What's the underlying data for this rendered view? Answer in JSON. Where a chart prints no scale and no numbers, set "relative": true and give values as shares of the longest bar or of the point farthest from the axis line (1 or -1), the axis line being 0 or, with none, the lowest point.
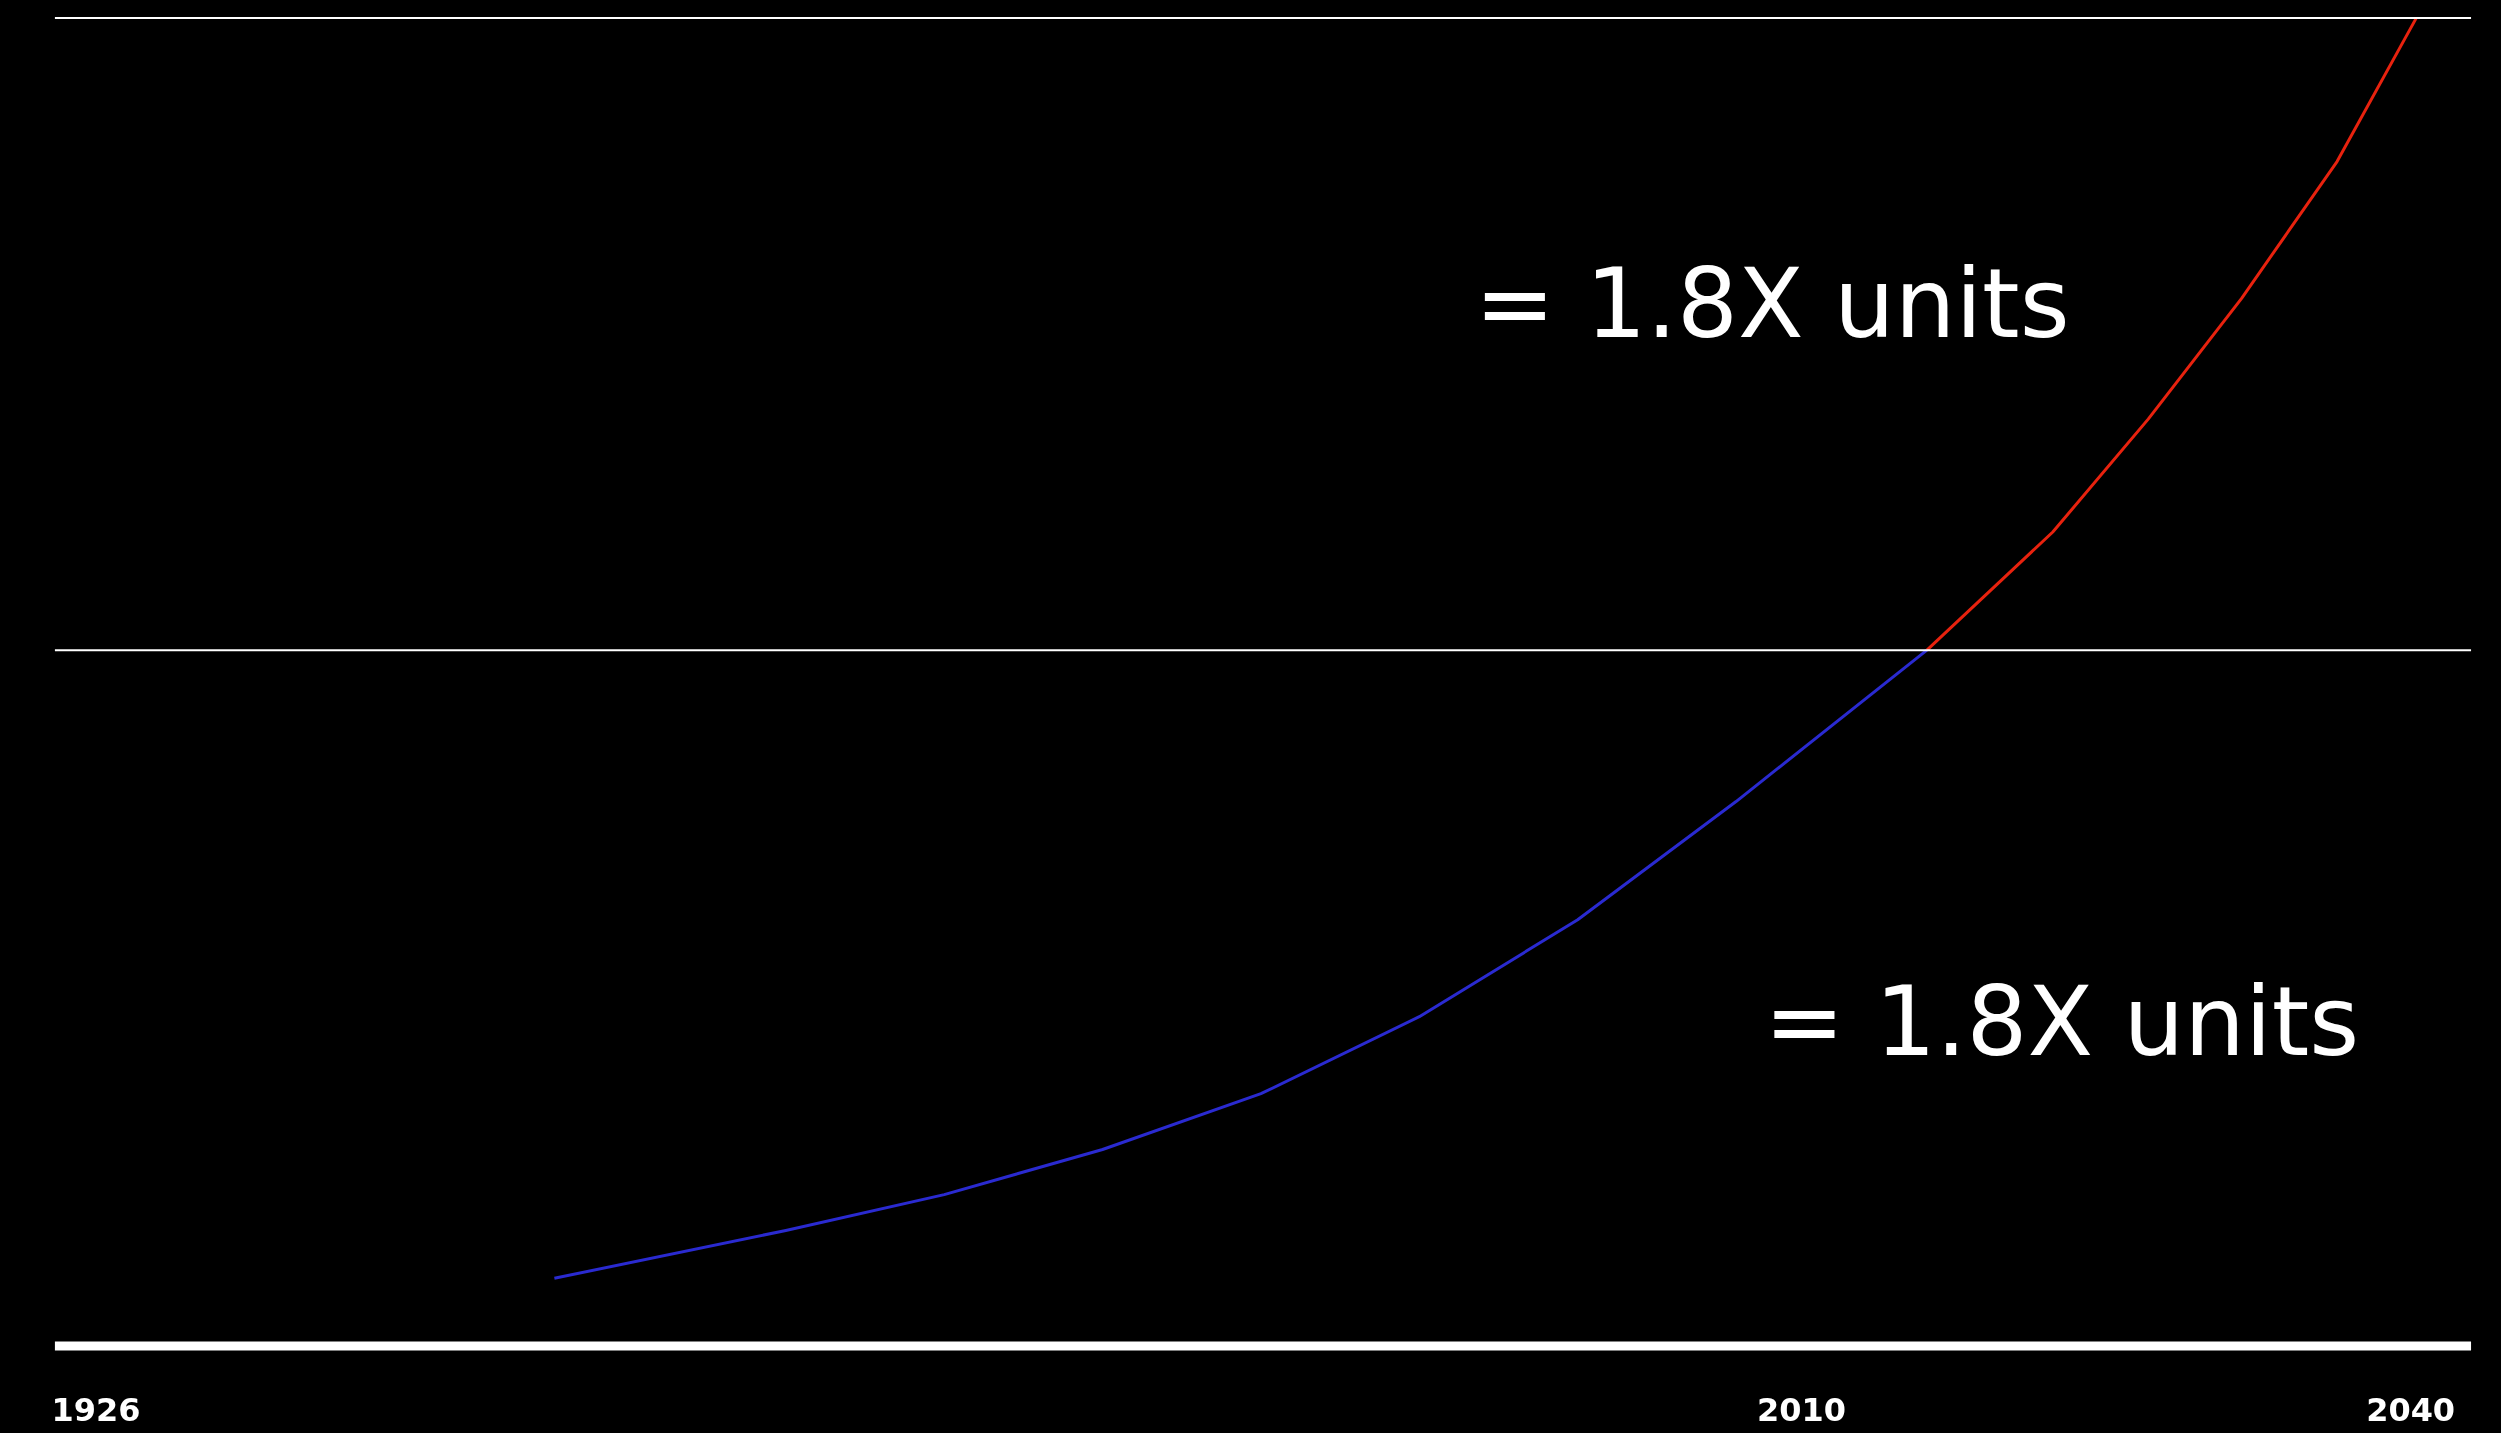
{
  "chart_data": {
    "type": "line",
    "relative": true,
    "grid": false,
    "marker": "none",
    "line_style": "solid",
    "xlim": [
      1924,
      2043
    ],
    "xticks": [
      1926,
      2010,
      2040
    ],
    "series": [
      {
        "color": "#2a2ad0",
        "x": [
          1948.6,
          1960.0,
          1967.8,
          1975.6,
          1983.4,
          1991.2,
          1999.0,
          2006.8,
          2016.2
        ],
        "values": [
          0.051,
          0.087,
          0.114,
          0.148,
          0.19,
          0.248,
          0.321,
          0.41,
          0.524
        ]
      },
      {
        "color": "#e8220e",
        "x": [
          2016.2,
          2022.4,
          2027.1,
          2031.7,
          2036.4,
          2040.3
        ],
        "values": [
          0.524,
          0.613,
          0.698,
          0.789,
          0.892,
          1.0
        ]
      }
    ],
    "ref_lines": [
      {
        "axis": "y",
        "value": 1.0,
        "color": "#ffffff"
      },
      {
        "axis": "y",
        "value": 0.524,
        "color": "#ffffff"
      }
    ],
    "annotations": [
      "= 1.8X units",
      "= 1.8X units"
    ]
  }
}
